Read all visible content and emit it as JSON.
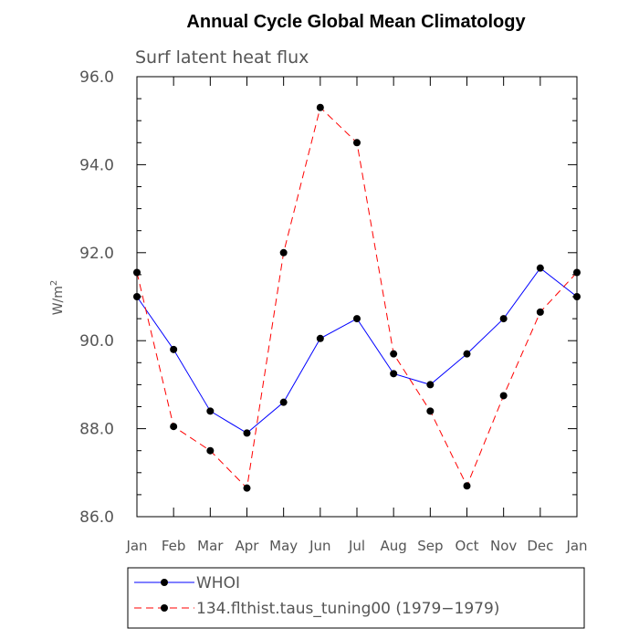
{
  "chart_data": {
    "type": "line",
    "title": "Annual Cycle Global Mean Climatology",
    "subtitle": "Surf latent heat flux",
    "ylabel": "W/m",
    "ylabel_superscript": "2",
    "xlabel": "",
    "categories": [
      "Jan",
      "Feb",
      "Mar",
      "Apr",
      "May",
      "Jun",
      "Jul",
      "Aug",
      "Sep",
      "Oct",
      "Nov",
      "Dec",
      "Jan"
    ],
    "ylim": [
      86.0,
      96.0
    ],
    "yticks": [
      "86.0",
      "88.0",
      "90.0",
      "92.0",
      "94.0",
      "96.0"
    ],
    "series": [
      {
        "name": "WHOI",
        "color": "#0000ff",
        "dash": "solid",
        "values": [
          91.0,
          89.8,
          88.4,
          87.9,
          88.6,
          90.05,
          90.5,
          89.25,
          89.0,
          89.7,
          90.5,
          91.65,
          91.0
        ]
      },
      {
        "name": "134.flthist.taus_tuning00 (1979−1979)",
        "color": "#ff0000",
        "dash": "dashed",
        "values": [
          91.55,
          88.05,
          87.5,
          86.65,
          92.0,
          95.3,
          94.5,
          89.7,
          88.4,
          86.7,
          88.75,
          90.65,
          91.55
        ]
      }
    ],
    "legend": "bottom"
  }
}
